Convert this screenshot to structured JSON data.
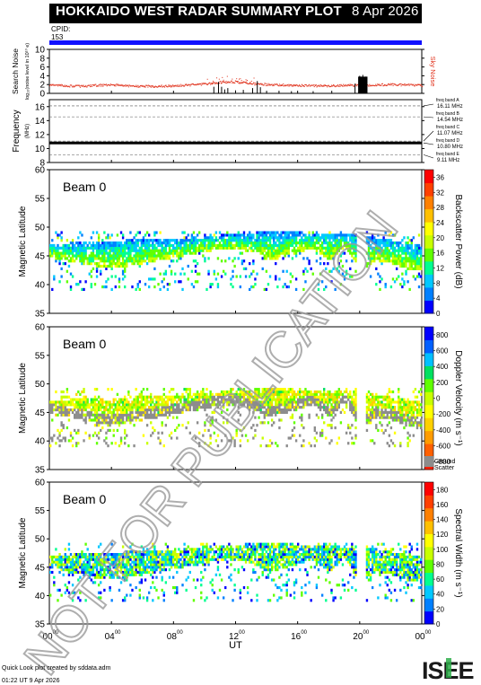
{
  "header": {
    "title": "HOKKAIDO WEST RADAR SUMMARY PLOT",
    "date": "8 Apr 2026",
    "cpid_label": "CPID:",
    "cpid_value": "153"
  },
  "footer": {
    "line1": "Quick Look plot created by sddata.adm",
    "line2": "01:22 UT 9 Apr 2026",
    "logo_text": "ISEE"
  },
  "watermark": "NOT FOR PUBLICATION",
  "colors": {
    "cpid_bar": "#1010ff",
    "sky_noise": "#e0301a",
    "ground_scatter": "#8c8c8c"
  },
  "chart_data": [
    {
      "type": "scatter",
      "name": "noise",
      "ylabel": "Search Noise",
      "ylabel_units": "log₁₀(noise level in 10¹⁰ e)",
      "right_label": "Sky Noise",
      "ylim": [
        0,
        10
      ],
      "yticks": [
        "0",
        "2",
        "4",
        "6",
        "8",
        "10"
      ],
      "baseline": [
        [
          0,
          2.0
        ],
        [
          1,
          1.8
        ],
        [
          2,
          1.7
        ],
        [
          3,
          1.9
        ],
        [
          4,
          2.0
        ],
        [
          5,
          1.8
        ],
        [
          6,
          1.7
        ],
        [
          7,
          1.7
        ],
        [
          8,
          1.8
        ],
        [
          9,
          2.0
        ],
        [
          10,
          2.2
        ],
        [
          11,
          2.6
        ],
        [
          12,
          2.7
        ],
        [
          13,
          2.3
        ],
        [
          14,
          2.1
        ],
        [
          15,
          2.0
        ],
        [
          16,
          1.9
        ],
        [
          17,
          1.8
        ],
        [
          18,
          1.8
        ],
        [
          19,
          1.9
        ],
        [
          20,
          1.9
        ],
        [
          21,
          2.0
        ],
        [
          22,
          2.1
        ],
        [
          23,
          2.0
        ],
        [
          24,
          1.9
        ]
      ],
      "search_noise_spikes": [
        [
          10.6,
          1.5
        ],
        [
          10.9,
          2.6
        ],
        [
          11.1,
          1.5
        ],
        [
          11.3,
          0.9
        ],
        [
          11.5,
          1.2
        ],
        [
          12.0,
          0.7
        ],
        [
          12.5,
          0.8
        ],
        [
          13.1,
          1.2
        ],
        [
          13.4,
          2.8
        ],
        [
          13.6,
          1.4
        ],
        [
          14.0,
          0.6
        ],
        [
          14.8,
          0.6
        ],
        [
          15.6,
          0.5
        ],
        [
          17.0,
          0.5
        ],
        [
          18.2,
          0.6
        ],
        [
          19.7,
          2.2
        ],
        [
          20.0,
          4.0
        ],
        [
          20.2,
          4.2
        ],
        [
          20.4,
          3.8
        ]
      ]
    },
    {
      "type": "line",
      "name": "frequency",
      "ylabel": "Frequency",
      "ylabel_units": "(MHz)",
      "ylim": [
        8,
        17
      ],
      "yticks": [
        "8",
        "10",
        "12",
        "14",
        "16"
      ],
      "bands": [
        {
          "label": "freq band A",
          "value": "16.11 MHz",
          "mhz": 16.11
        },
        {
          "label": "freq band B",
          "value": "14.54 MHz",
          "mhz": 14.54
        },
        {
          "label": "freq band C",
          "value": "11.07 MHz",
          "mhz": 11.07
        },
        {
          "label": "freq band D",
          "value": "10.80 MHz",
          "mhz": 10.8
        },
        {
          "label": "freq band E",
          "value": "9.11 MHz",
          "mhz": 9.11
        }
      ],
      "operating_mhz": 10.8
    },
    {
      "type": "heatmap",
      "name": "power",
      "beam": "Beam  0",
      "ylabel": "Magnetic Latitude",
      "ylim": [
        35,
        60
      ],
      "yticks": [
        "35",
        "40",
        "45",
        "50",
        "55",
        "60"
      ],
      "colorbar_label": "Backscatter Power (dB)",
      "colorbar_ticks": [
        "0",
        "4",
        "8",
        "12",
        "16",
        "20",
        "24",
        "28",
        "32",
        "36"
      ],
      "colorbar_range": [
        0,
        38
      ],
      "palette": [
        "#0000ff",
        "#0080ff",
        "#00c8ff",
        "#00ff90",
        "#60ff00",
        "#c8ff00",
        "#ffff00",
        "#ffc000",
        "#ff8000",
        "#ff4000",
        "#ff0000"
      ]
    },
    {
      "type": "heatmap",
      "name": "velocity",
      "beam": "Beam  0",
      "ylabel": "Magnetic Latitude",
      "ylim": [
        35,
        60
      ],
      "yticks": [
        "35",
        "40",
        "45",
        "50",
        "55",
        "60"
      ],
      "colorbar_label": "Doppler Velocity (m s⁻¹)",
      "colorbar_ticks": [
        "-800",
        "-600",
        "-400",
        "-200",
        "0",
        "200",
        "400",
        "600",
        "800"
      ],
      "colorbar_range": [
        -900,
        900
      ],
      "palette": [
        "#ff2000",
        "#ff6000",
        "#ff9c00",
        "#ffd000",
        "#ffff00",
        "#c8ff00",
        "#60ff00",
        "#00e060",
        "#00c0ff",
        "#0060ff",
        "#0000ff"
      ],
      "ground_scatter_label": [
        "Ground",
        "Scatter"
      ]
    },
    {
      "type": "heatmap",
      "name": "width",
      "beam": "Beam  0",
      "ylabel": "Magnetic Latitude",
      "ylim": [
        35,
        60
      ],
      "yticks": [
        "35",
        "40",
        "45",
        "50",
        "55",
        "60"
      ],
      "colorbar_label": "Spectral Width (m s⁻¹)",
      "colorbar_ticks": [
        "0",
        "20",
        "40",
        "60",
        "80",
        "100",
        "120",
        "140",
        "160",
        "180"
      ],
      "colorbar_range": [
        0,
        190
      ],
      "palette": [
        "#0000ff",
        "#0080ff",
        "#00c8ff",
        "#00ff90",
        "#60ff00",
        "#c8ff00",
        "#ffff00",
        "#ffc000",
        "#ff8000",
        "#ff4000",
        "#ff0000"
      ]
    }
  ],
  "xaxis": {
    "label": "UT",
    "range": [
      0,
      24
    ],
    "ticks": [
      {
        "ut": 0,
        "hour": "00",
        "min": "00"
      },
      {
        "ut": 4,
        "hour": "04",
        "min": "00"
      },
      {
        "ut": 8,
        "hour": "08",
        "min": "00"
      },
      {
        "ut": 12,
        "hour": "12",
        "min": "00"
      },
      {
        "ut": 16,
        "hour": "16",
        "min": "00"
      },
      {
        "ut": 20,
        "hour": "20",
        "min": "00"
      },
      {
        "ut": 24,
        "hour": "00",
        "min": "00"
      }
    ]
  },
  "scatter_band": {
    "ut": [
      0,
      1,
      2,
      3,
      4,
      5,
      6,
      7,
      8,
      9,
      10,
      11,
      12,
      13,
      14,
      15,
      16,
      17,
      18,
      19,
      20,
      21,
      22,
      23,
      24
    ],
    "lower_edge": [
      44.5,
      44.0,
      43.5,
      43.0,
      42.8,
      43.0,
      43.5,
      44.0,
      44.5,
      45.0,
      45.5,
      46.0,
      46.0,
      45.5,
      44.0,
      44.5,
      45.5,
      46.0,
      44.0,
      46.5,
      42.0,
      44.0,
      43.5,
      42.5,
      42.0
    ],
    "upper_edge": [
      47.0,
      47.0,
      47.2,
      47.3,
      47.4,
      47.5,
      47.6,
      47.7,
      47.8,
      48.0,
      48.2,
      48.4,
      48.6,
      48.8,
      49.0,
      49.0,
      48.8,
      48.5,
      48.8,
      48.8,
      48.5,
      48.0,
      47.5,
      47.0,
      46.5
    ],
    "gaps": [
      [
        19.7,
        20.3
      ]
    ]
  }
}
